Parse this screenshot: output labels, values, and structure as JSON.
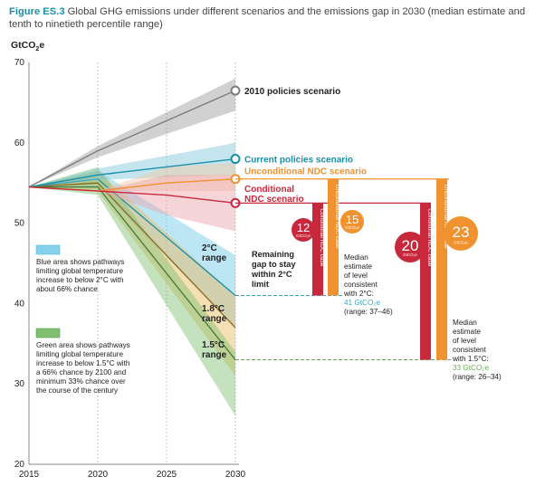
{
  "figure": {
    "label": "Figure ES.3",
    "title": "Global GHG emissions under different scenarios and the emissions gap in 2030 (median estimate and tenth to ninetieth percentile range)"
  },
  "colors": {
    "policies2010": "#7d7d7d",
    "current": "#1a8fa8",
    "unconditional": "#f0922f",
    "conditional": "#c8283c",
    "blue_area": "#86d2ec",
    "green_area": "#7fbf6f",
    "axis": "#888888"
  },
  "chart_data": {
    "type": "line",
    "ylabel": "GtCO",
    "ylabel_sub": "2",
    "ylabel_end": "e",
    "ylim": [
      20,
      70
    ],
    "xlim": [
      2015,
      2030
    ],
    "yticks": [
      20,
      30,
      40,
      50,
      60,
      70
    ],
    "xticks": [
      2015,
      2020,
      2025,
      2030
    ],
    "series": [
      {
        "name": "2010 policies scenario",
        "x": [
          2015,
          2020,
          2030
        ],
        "values": [
          54.5,
          59.0,
          66.5
        ],
        "low": [
          54.5,
          58.2,
          64.0
        ],
        "high": [
          54.5,
          59.6,
          68.0
        ]
      },
      {
        "name": "Current policies scenario",
        "x": [
          2015,
          2020,
          2030
        ],
        "values": [
          54.5,
          56.0,
          58.0
        ],
        "low": [
          54.5,
          55.4,
          56.0
        ],
        "high": [
          54.5,
          56.8,
          60.0
        ]
      },
      {
        "name": "Unconditional NDC scenario",
        "x": [
          2015,
          2020,
          2025,
          2030
        ],
        "values": [
          54.5,
          54.0,
          55.0,
          55.5
        ],
        "low": [
          54.5,
          54.0,
          54.0,
          54.0
        ],
        "high": [
          54.5,
          54.0,
          57.0,
          57.5
        ]
      },
      {
        "name": "Conditional NDC scenario",
        "x": [
          2015,
          2020,
          2025,
          2030
        ],
        "values": [
          54.5,
          54.0,
          53.5,
          52.5
        ],
        "low": [
          54.5,
          54.0,
          51.0,
          49.0
        ],
        "high": [
          54.5,
          54.0,
          56.0,
          56.0
        ]
      }
    ],
    "pathways": [
      {
        "name": "2°C range",
        "x": [
          2015,
          2020,
          2030
        ],
        "median": [
          54.5,
          55.5,
          41.0
        ],
        "low": [
          54.5,
          54.5,
          37.0
        ],
        "high": [
          54.5,
          56.5,
          46.0
        ]
      },
      {
        "name": "1.8°C range",
        "x": [
          2015,
          2020,
          2030
        ],
        "median": [
          54.5,
          55.0,
          37.0
        ],
        "low": [
          54.5,
          54.0,
          31.0
        ],
        "high": [
          54.5,
          56.5,
          41.0
        ]
      },
      {
        "name": "1.5°C range",
        "x": [
          2015,
          2020,
          2030
        ],
        "median": [
          54.5,
          54.5,
          33.0
        ],
        "low": [
          54.5,
          53.5,
          26.0
        ],
        "high": [
          54.5,
          57.0,
          34.0
        ]
      }
    ],
    "gap_bars": [
      {
        "label": "Conditional NDC case",
        "from": 41,
        "to": 52.5,
        "group": "2C"
      },
      {
        "label": "Unconditional NDC case",
        "from": 41,
        "to": 55.5,
        "group": "2C"
      },
      {
        "label": "Conditional NDC case",
        "from": 33,
        "to": 52.5,
        "group": "1.5C"
      },
      {
        "label": "Unconditional NDC case",
        "from": 33,
        "to": 55.5,
        "group": "1.5C"
      }
    ],
    "gap_circles": [
      {
        "value": "12",
        "unit": "GtCO₂e",
        "group": "2C",
        "kind": "conditional"
      },
      {
        "value": "15",
        "unit": "GtCO₂e",
        "group": "2C",
        "kind": "unconditional"
      },
      {
        "value": "20",
        "unit": "GtCO₂e",
        "group": "1.5C",
        "kind": "conditional"
      },
      {
        "value": "23",
        "unit": "GtCO₂e",
        "group": "1.5C",
        "kind": "unconditional"
      }
    ],
    "annotations": {
      "remaining_gap": [
        "Remaining",
        "gap to stay",
        "within 2°C",
        "limit"
      ],
      "median_2c": [
        "Median",
        "estimate",
        "of level",
        "consistent",
        "with 2°C:"
      ],
      "median_2c_value": "41 GtCO₂e",
      "median_2c_range": "(range: 37–46)",
      "median_15c": [
        "Median",
        "estimate",
        "of level",
        "consistent",
        "with 1.5°C:"
      ],
      "median_15c_value": "33 GtCO₂e",
      "median_15c_range": "(range: 26–34)",
      "label_2c": [
        "2°C",
        "range"
      ],
      "label_18c": [
        "1.8°C",
        "range"
      ],
      "label_15c": [
        "1.5°C",
        "range"
      ],
      "label_conditional": [
        "Conditional",
        "NDC scenario"
      ]
    },
    "legend": {
      "blue": [
        "Blue area shows pathways",
        "limiting global temperature",
        "increase to below 2°C with",
        "about 66% chance"
      ],
      "green": [
        "Green area shows pathways",
        "limiting global temperature",
        "increase to below 1.5°C with",
        "a 66% chance by 2100 and",
        "minimum 33% chance over",
        "the course of the century"
      ]
    }
  }
}
